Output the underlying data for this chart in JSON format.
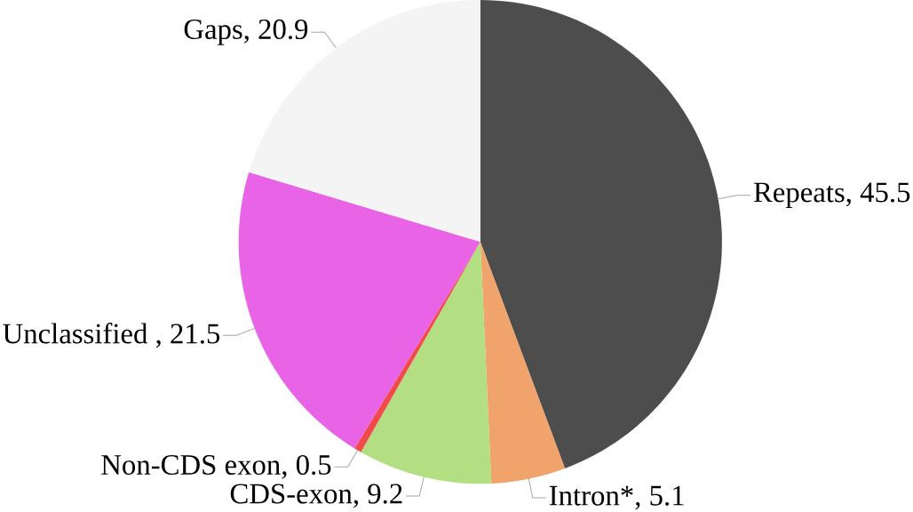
{
  "chart_data": {
    "type": "pie",
    "categories": [
      "Repeats",
      "Intron*",
      "CDS-exon",
      "Non-CDS exon",
      "Unclassified ",
      "Gaps"
    ],
    "values": [
      45.5,
      5.1,
      9.2,
      0.5,
      21.5,
      20.9
    ],
    "colors": [
      "#4d4d4d",
      "#f0a46c",
      "#b3df82",
      "#f24a4a",
      "#e963e6",
      "#f4f4f4"
    ],
    "value_labels": [
      ", 45.5",
      ", 5.1",
      ", 9.2",
      ", 0.5",
      ", 21.5",
      ", 20.9"
    ]
  }
}
